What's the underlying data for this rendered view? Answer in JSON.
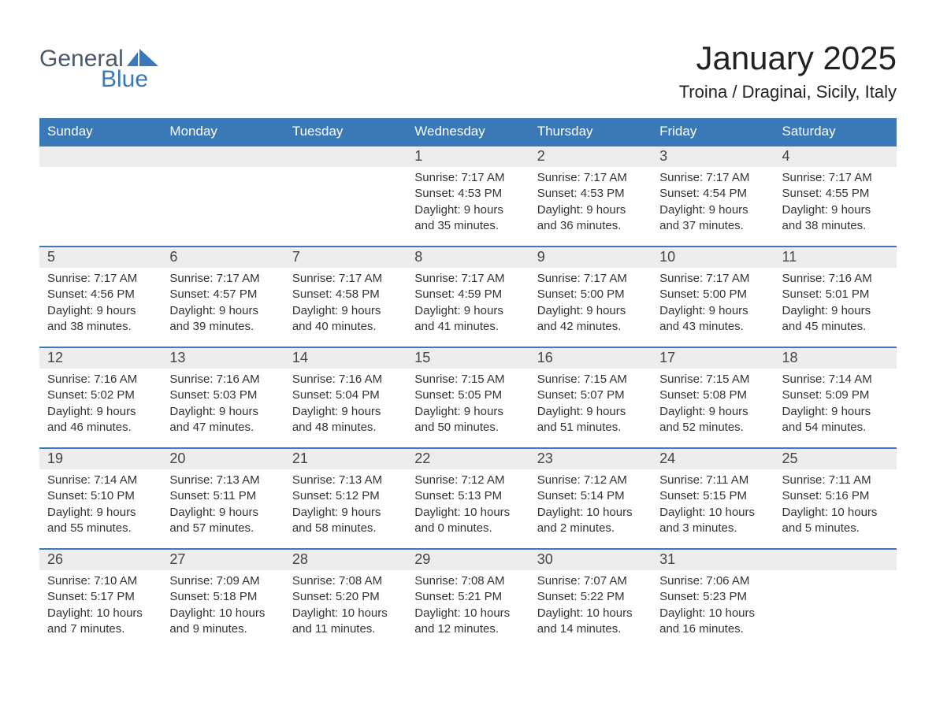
{
  "colors": {
    "header_bg": "#3a78b8",
    "header_text": "#ffffff",
    "daynum_bg": "#ececec",
    "daynum_border": "#3a78b8",
    "body_text": "#333333",
    "logo_gray": "#4a5a6a",
    "logo_blue": "#3a78b8",
    "page_bg": "#ffffff"
  },
  "typography": {
    "month_title_size_pt": 32,
    "location_size_pt": 17,
    "day_header_size_pt": 13,
    "daynum_size_pt": 14,
    "cell_text_size_pt": 11
  },
  "logo": {
    "general": "General",
    "blue": "Blue"
  },
  "title": "January 2025",
  "location": "Troina / Draginai, Sicily, Italy",
  "day_headers": [
    "Sunday",
    "Monday",
    "Tuesday",
    "Wednesday",
    "Thursday",
    "Friday",
    "Saturday"
  ],
  "weeks": [
    [
      null,
      null,
      null,
      {
        "n": "1",
        "sunrise": "Sunrise: 7:17 AM",
        "sunset": "Sunset: 4:53 PM",
        "d1": "Daylight: 9 hours",
        "d2": "and 35 minutes."
      },
      {
        "n": "2",
        "sunrise": "Sunrise: 7:17 AM",
        "sunset": "Sunset: 4:53 PM",
        "d1": "Daylight: 9 hours",
        "d2": "and 36 minutes."
      },
      {
        "n": "3",
        "sunrise": "Sunrise: 7:17 AM",
        "sunset": "Sunset: 4:54 PM",
        "d1": "Daylight: 9 hours",
        "d2": "and 37 minutes."
      },
      {
        "n": "4",
        "sunrise": "Sunrise: 7:17 AM",
        "sunset": "Sunset: 4:55 PM",
        "d1": "Daylight: 9 hours",
        "d2": "and 38 minutes."
      }
    ],
    [
      {
        "n": "5",
        "sunrise": "Sunrise: 7:17 AM",
        "sunset": "Sunset: 4:56 PM",
        "d1": "Daylight: 9 hours",
        "d2": "and 38 minutes."
      },
      {
        "n": "6",
        "sunrise": "Sunrise: 7:17 AM",
        "sunset": "Sunset: 4:57 PM",
        "d1": "Daylight: 9 hours",
        "d2": "and 39 minutes."
      },
      {
        "n": "7",
        "sunrise": "Sunrise: 7:17 AM",
        "sunset": "Sunset: 4:58 PM",
        "d1": "Daylight: 9 hours",
        "d2": "and 40 minutes."
      },
      {
        "n": "8",
        "sunrise": "Sunrise: 7:17 AM",
        "sunset": "Sunset: 4:59 PM",
        "d1": "Daylight: 9 hours",
        "d2": "and 41 minutes."
      },
      {
        "n": "9",
        "sunrise": "Sunrise: 7:17 AM",
        "sunset": "Sunset: 5:00 PM",
        "d1": "Daylight: 9 hours",
        "d2": "and 42 minutes."
      },
      {
        "n": "10",
        "sunrise": "Sunrise: 7:17 AM",
        "sunset": "Sunset: 5:00 PM",
        "d1": "Daylight: 9 hours",
        "d2": "and 43 minutes."
      },
      {
        "n": "11",
        "sunrise": "Sunrise: 7:16 AM",
        "sunset": "Sunset: 5:01 PM",
        "d1": "Daylight: 9 hours",
        "d2": "and 45 minutes."
      }
    ],
    [
      {
        "n": "12",
        "sunrise": "Sunrise: 7:16 AM",
        "sunset": "Sunset: 5:02 PM",
        "d1": "Daylight: 9 hours",
        "d2": "and 46 minutes."
      },
      {
        "n": "13",
        "sunrise": "Sunrise: 7:16 AM",
        "sunset": "Sunset: 5:03 PM",
        "d1": "Daylight: 9 hours",
        "d2": "and 47 minutes."
      },
      {
        "n": "14",
        "sunrise": "Sunrise: 7:16 AM",
        "sunset": "Sunset: 5:04 PM",
        "d1": "Daylight: 9 hours",
        "d2": "and 48 minutes."
      },
      {
        "n": "15",
        "sunrise": "Sunrise: 7:15 AM",
        "sunset": "Sunset: 5:05 PM",
        "d1": "Daylight: 9 hours",
        "d2": "and 50 minutes."
      },
      {
        "n": "16",
        "sunrise": "Sunrise: 7:15 AM",
        "sunset": "Sunset: 5:07 PM",
        "d1": "Daylight: 9 hours",
        "d2": "and 51 minutes."
      },
      {
        "n": "17",
        "sunrise": "Sunrise: 7:15 AM",
        "sunset": "Sunset: 5:08 PM",
        "d1": "Daylight: 9 hours",
        "d2": "and 52 minutes."
      },
      {
        "n": "18",
        "sunrise": "Sunrise: 7:14 AM",
        "sunset": "Sunset: 5:09 PM",
        "d1": "Daylight: 9 hours",
        "d2": "and 54 minutes."
      }
    ],
    [
      {
        "n": "19",
        "sunrise": "Sunrise: 7:14 AM",
        "sunset": "Sunset: 5:10 PM",
        "d1": "Daylight: 9 hours",
        "d2": "and 55 minutes."
      },
      {
        "n": "20",
        "sunrise": "Sunrise: 7:13 AM",
        "sunset": "Sunset: 5:11 PM",
        "d1": "Daylight: 9 hours",
        "d2": "and 57 minutes."
      },
      {
        "n": "21",
        "sunrise": "Sunrise: 7:13 AM",
        "sunset": "Sunset: 5:12 PM",
        "d1": "Daylight: 9 hours",
        "d2": "and 58 minutes."
      },
      {
        "n": "22",
        "sunrise": "Sunrise: 7:12 AM",
        "sunset": "Sunset: 5:13 PM",
        "d1": "Daylight: 10 hours",
        "d2": "and 0 minutes."
      },
      {
        "n": "23",
        "sunrise": "Sunrise: 7:12 AM",
        "sunset": "Sunset: 5:14 PM",
        "d1": "Daylight: 10 hours",
        "d2": "and 2 minutes."
      },
      {
        "n": "24",
        "sunrise": "Sunrise: 7:11 AM",
        "sunset": "Sunset: 5:15 PM",
        "d1": "Daylight: 10 hours",
        "d2": "and 3 minutes."
      },
      {
        "n": "25",
        "sunrise": "Sunrise: 7:11 AM",
        "sunset": "Sunset: 5:16 PM",
        "d1": "Daylight: 10 hours",
        "d2": "and 5 minutes."
      }
    ],
    [
      {
        "n": "26",
        "sunrise": "Sunrise: 7:10 AM",
        "sunset": "Sunset: 5:17 PM",
        "d1": "Daylight: 10 hours",
        "d2": "and 7 minutes."
      },
      {
        "n": "27",
        "sunrise": "Sunrise: 7:09 AM",
        "sunset": "Sunset: 5:18 PM",
        "d1": "Daylight: 10 hours",
        "d2": "and 9 minutes."
      },
      {
        "n": "28",
        "sunrise": "Sunrise: 7:08 AM",
        "sunset": "Sunset: 5:20 PM",
        "d1": "Daylight: 10 hours",
        "d2": "and 11 minutes."
      },
      {
        "n": "29",
        "sunrise": "Sunrise: 7:08 AM",
        "sunset": "Sunset: 5:21 PM",
        "d1": "Daylight: 10 hours",
        "d2": "and 12 minutes."
      },
      {
        "n": "30",
        "sunrise": "Sunrise: 7:07 AM",
        "sunset": "Sunset: 5:22 PM",
        "d1": "Daylight: 10 hours",
        "d2": "and 14 minutes."
      },
      {
        "n": "31",
        "sunrise": "Sunrise: 7:06 AM",
        "sunset": "Sunset: 5:23 PM",
        "d1": "Daylight: 10 hours",
        "d2": "and 16 minutes."
      },
      null
    ]
  ]
}
